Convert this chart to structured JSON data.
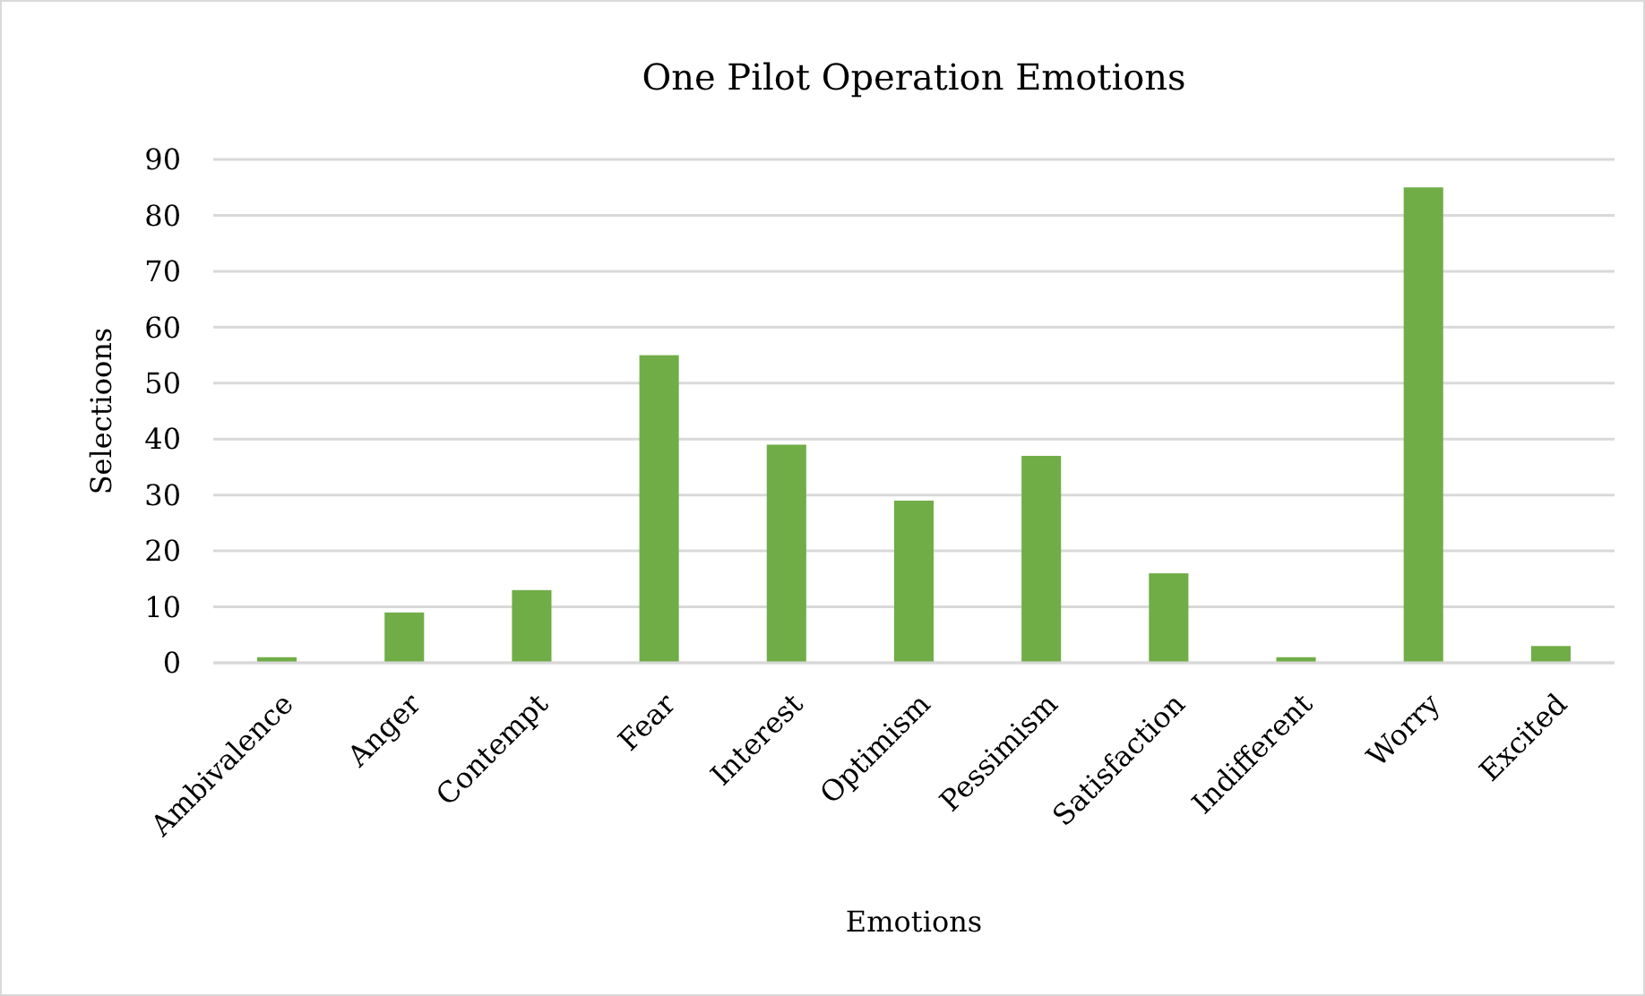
{
  "chart_data": {
    "type": "bar",
    "title": "One Pilot Operation Emotions",
    "xlabel": "Emotions",
    "ylabel": "Selectioons",
    "categories": [
      "Ambivalence",
      "Anger",
      "Contempt",
      "Fear",
      "Interest",
      "Optimism",
      "Pessimism",
      "Satisfaction",
      "Indifferent",
      "Worry",
      "Excited"
    ],
    "values": [
      1,
      9,
      13,
      55,
      39,
      29,
      37,
      16,
      1,
      85,
      3
    ],
    "color": "#70ad47",
    "ylim": [
      0,
      90
    ],
    "yticks": [
      0,
      10,
      20,
      30,
      40,
      50,
      60,
      70,
      80,
      90
    ],
    "grid": "y"
  }
}
